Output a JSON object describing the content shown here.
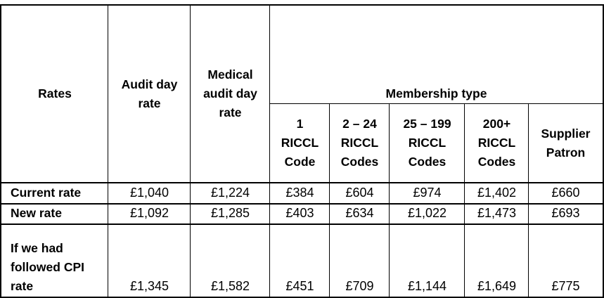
{
  "table": {
    "headers": {
      "rates": "Rates",
      "audit_day_rate": [
        "Audit day",
        "rate"
      ],
      "medical_audit_day_rate": [
        "Medical",
        "audit day",
        "rate"
      ],
      "membership_type": "Membership type",
      "membership_columns": [
        [
          "1",
          "RICCL",
          "Code"
        ],
        [
          "2 – 24",
          "RICCL",
          "Codes"
        ],
        [
          "25 – 199",
          "RICCL",
          "Codes"
        ],
        [
          "200+",
          "RICCL",
          "Codes"
        ],
        [
          "Supplier",
          "Patron"
        ]
      ]
    },
    "rows": [
      {
        "label": [
          "Current rate"
        ],
        "values": [
          "£1,040",
          "£1,224",
          "£384",
          "£604",
          "£974",
          "£1,402",
          "£660"
        ]
      },
      {
        "label": [
          "New rate"
        ],
        "values": [
          "£1,092",
          "£1,285",
          "£403",
          "£634",
          "£1,022",
          "£1,473",
          "£693"
        ]
      },
      {
        "label": [
          "If we had",
          "followed CPI",
          "rate"
        ],
        "values": [
          "£1,345",
          "£1,582",
          "£451",
          "£709",
          "£1,144",
          "£1,649",
          "£775"
        ]
      }
    ]
  }
}
